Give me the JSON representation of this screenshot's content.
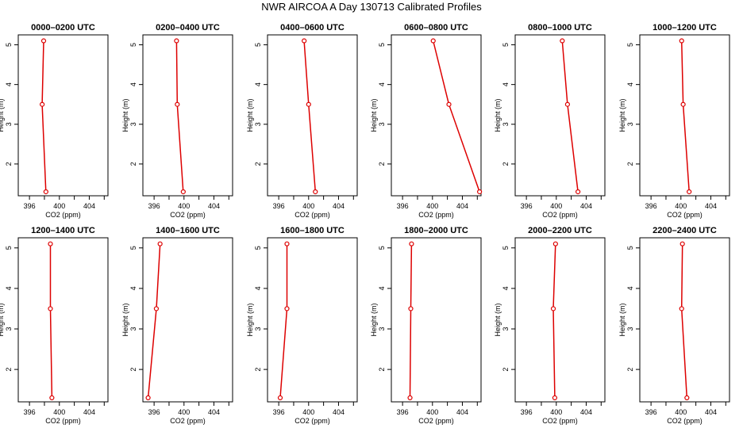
{
  "title": "NWR AIRCOA A  Day 130713  Calibrated Profiles",
  "colors": {
    "line": "#dd0000",
    "axis": "#000000",
    "background": "#ffffff"
  },
  "chart_data": [
    {
      "type": "line",
      "title": "0000–0200 UTC",
      "xlabel": "CO2 (ppm)",
      "ylabel": "Height (m)",
      "x_ticks": [
        396,
        400,
        404
      ],
      "y_ticks": [
        2,
        3,
        4,
        5
      ],
      "xlim": [
        394.5,
        406.5
      ],
      "ylim": [
        1.2,
        5.25
      ],
      "heights": [
        1.3,
        3.5,
        5.1
      ],
      "co2": [
        398.2,
        397.7,
        397.9
      ]
    },
    {
      "type": "line",
      "title": "0200–0400 UTC",
      "xlabel": "CO2 (ppm)",
      "ylabel": "Height (m)",
      "x_ticks": [
        396,
        400,
        404
      ],
      "y_ticks": [
        2,
        3,
        4,
        5
      ],
      "xlim": [
        394.5,
        406.5
      ],
      "ylim": [
        1.2,
        5.25
      ],
      "heights": [
        1.3,
        3.5,
        5.1
      ],
      "co2": [
        399.9,
        399.1,
        399.0
      ]
    },
    {
      "type": "line",
      "title": "0400–0600 UTC",
      "xlabel": "CO2 (ppm)",
      "ylabel": "Height (m)",
      "x_ticks": [
        396,
        400,
        404
      ],
      "y_ticks": [
        2,
        3,
        4,
        5
      ],
      "xlim": [
        394.5,
        406.5
      ],
      "ylim": [
        1.2,
        5.25
      ],
      "heights": [
        1.3,
        3.5,
        5.1
      ],
      "co2": [
        400.9,
        400.0,
        399.4
      ]
    },
    {
      "type": "line",
      "title": "0600–0800 UTC",
      "xlabel": "CO2 (ppm)",
      "ylabel": "Height (m)",
      "x_ticks": [
        396,
        400,
        404
      ],
      "y_ticks": [
        2,
        3,
        4,
        5
      ],
      "xlim": [
        394.5,
        406.5
      ],
      "ylim": [
        1.2,
        5.25
      ],
      "heights": [
        1.3,
        3.5,
        5.1
      ],
      "co2": [
        406.3,
        402.2,
        400.1
      ]
    },
    {
      "type": "line",
      "title": "0800–1000 UTC",
      "xlabel": "CO2 (ppm)",
      "ylabel": "Height (m)",
      "x_ticks": [
        396,
        400,
        404
      ],
      "y_ticks": [
        2,
        3,
        4,
        5
      ],
      "xlim": [
        394.5,
        406.5
      ],
      "ylim": [
        1.2,
        5.25
      ],
      "heights": [
        1.3,
        3.5,
        5.1
      ],
      "co2": [
        402.9,
        401.5,
        400.8
      ]
    },
    {
      "type": "line",
      "title": "1000–1200 UTC",
      "xlabel": "CO2 (ppm)",
      "ylabel": "Height (m)",
      "x_ticks": [
        396,
        400,
        404
      ],
      "y_ticks": [
        2,
        3,
        4,
        5
      ],
      "xlim": [
        394.5,
        406.5
      ],
      "ylim": [
        1.2,
        5.25
      ],
      "heights": [
        1.3,
        3.5,
        5.1
      ],
      "co2": [
        401.1,
        400.3,
        400.1
      ]
    },
    {
      "type": "line",
      "title": "1200–1400 UTC",
      "xlabel": "CO2 (ppm)",
      "ylabel": "Height (m)",
      "x_ticks": [
        396,
        400,
        404
      ],
      "y_ticks": [
        2,
        3,
        4,
        5
      ],
      "xlim": [
        394.5,
        406.5
      ],
      "ylim": [
        1.2,
        5.25
      ],
      "heights": [
        1.3,
        3.5,
        5.1
      ],
      "co2": [
        399.0,
        398.8,
        398.8
      ]
    },
    {
      "type": "line",
      "title": "1400–1600 UTC",
      "xlabel": "CO2 (ppm)",
      "ylabel": "Height (m)",
      "x_ticks": [
        396,
        400,
        404
      ],
      "y_ticks": [
        2,
        3,
        4,
        5
      ],
      "xlim": [
        394.5,
        406.5
      ],
      "ylim": [
        1.2,
        5.25
      ],
      "heights": [
        1.3,
        3.5,
        5.1
      ],
      "co2": [
        395.2,
        396.3,
        396.8
      ]
    },
    {
      "type": "line",
      "title": "1600–1800 UTC",
      "xlabel": "CO2 (ppm)",
      "ylabel": "Height (m)",
      "x_ticks": [
        396,
        400,
        404
      ],
      "y_ticks": [
        2,
        3,
        4,
        5
      ],
      "xlim": [
        394.5,
        406.5
      ],
      "ylim": [
        1.2,
        5.25
      ],
      "heights": [
        1.3,
        3.5,
        5.1
      ],
      "co2": [
        396.2,
        397.1,
        397.1
      ]
    },
    {
      "type": "line",
      "title": "1800–2000 UTC",
      "xlabel": "CO2 (ppm)",
      "ylabel": "Height (m)",
      "x_ticks": [
        396,
        400,
        404
      ],
      "y_ticks": [
        2,
        3,
        4,
        5
      ],
      "xlim": [
        394.5,
        406.5
      ],
      "ylim": [
        1.2,
        5.25
      ],
      "heights": [
        1.3,
        3.5,
        5.1
      ],
      "co2": [
        397.0,
        397.1,
        397.2
      ]
    },
    {
      "type": "line",
      "title": "2000–2200 UTC",
      "xlabel": "CO2 (ppm)",
      "ylabel": "Height (m)",
      "x_ticks": [
        396,
        400,
        404
      ],
      "y_ticks": [
        2,
        3,
        4,
        5
      ],
      "xlim": [
        394.5,
        406.5
      ],
      "ylim": [
        1.2,
        5.25
      ],
      "heights": [
        1.3,
        3.5,
        5.1
      ],
      "co2": [
        399.8,
        399.6,
        399.9
      ]
    },
    {
      "type": "line",
      "title": "2200–2400 UTC",
      "xlabel": "CO2 (ppm)",
      "ylabel": "Height (m)",
      "x_ticks": [
        396,
        400,
        404
      ],
      "y_ticks": [
        2,
        3,
        4,
        5
      ],
      "xlim": [
        394.5,
        406.5
      ],
      "ylim": [
        1.2,
        5.25
      ],
      "heights": [
        1.3,
        3.5,
        5.1
      ],
      "co2": [
        400.8,
        400.1,
        400.2
      ]
    }
  ]
}
